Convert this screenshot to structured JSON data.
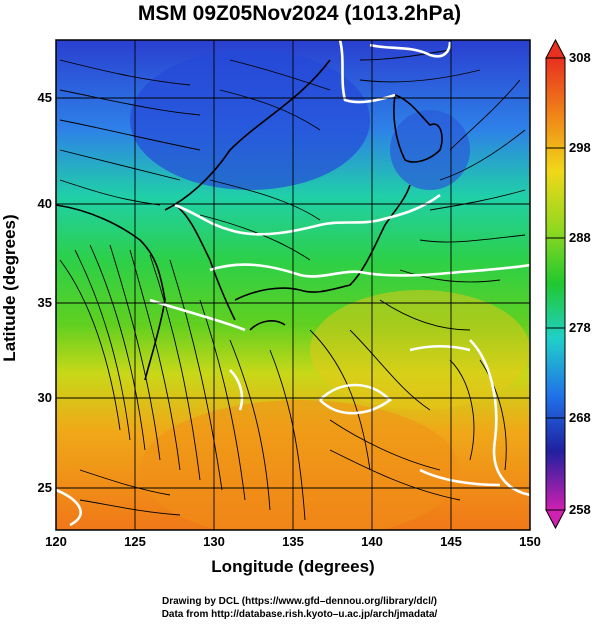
{
  "title": "MSM 09Z05Nov2024 (1013.2hPa)",
  "xaxis": {
    "label": "Longitude (degrees)",
    "ticks": [
      "120",
      "125",
      "130",
      "135",
      "140",
      "145",
      "150"
    ]
  },
  "yaxis": {
    "label": "Latitude  (degrees)",
    "ticks": [
      "45",
      "40",
      "35",
      "30",
      "25"
    ]
  },
  "colorbar": {
    "ticks": [
      "308",
      "298",
      "288",
      "278",
      "268",
      "258"
    ]
  },
  "credits": [
    "Drawing by DCL (https://www.gfd–dennou.org/library/dcl/)",
    "Data from http://database.rish.kyoto–u.ac.jp/arch/jmadata/"
  ],
  "colors": {
    "cold": "#1f3fd8",
    "cool": "#1fd8d0",
    "mild": "#2ccc3a",
    "warm": "#e8d820",
    "hot": "#f07818",
    "contour": "#ffffff",
    "coast": "#000000"
  }
}
